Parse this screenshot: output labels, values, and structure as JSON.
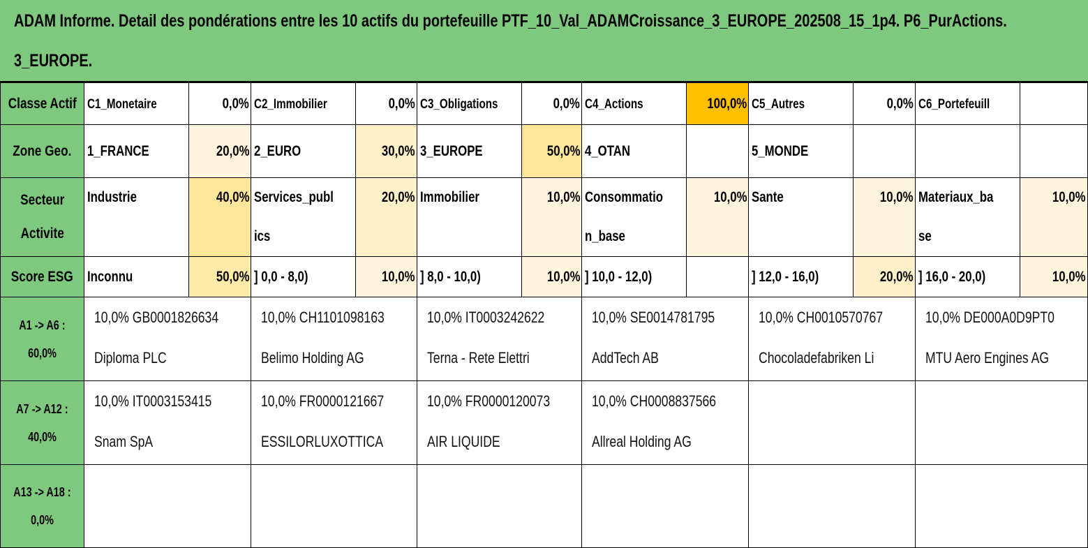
{
  "title": {
    "line1": "ADAM Informe. Detail des pondérations entre les 10 actifs du portefeuille PTF_10_Val_ADAMCroissance_3_EUROPE_202508_15_1p4. P6_PurActions.",
    "line2": "3_EUROPE."
  },
  "rows": {
    "classe": {
      "header": "Classe Actif",
      "cells": [
        {
          "label": "C1_Monetaire",
          "value": "0,0%"
        },
        {
          "label": "C2_Immobilier",
          "value": "0,0%"
        },
        {
          "label": "C3_Obligations",
          "value": "0,0%"
        },
        {
          "label": "C4_Actions",
          "value": "100,0%"
        },
        {
          "label": "C5_Autres",
          "value": "0,0%"
        },
        {
          "label": "C6_Portefeuill",
          "value": ""
        }
      ]
    },
    "zone": {
      "header": "Zone Geo.",
      "cells": [
        {
          "label": "1_FRANCE",
          "value": "20,0%"
        },
        {
          "label": "2_EURO",
          "value": "30,0%"
        },
        {
          "label": "3_EUROPE",
          "value": "50,0%"
        },
        {
          "label": "4_OTAN",
          "value": ""
        },
        {
          "label": "5_MONDE",
          "value": ""
        },
        {
          "label": "",
          "value": ""
        }
      ]
    },
    "secteur": {
      "header": "Secteur Activite",
      "cells": [
        {
          "label": "Industrie",
          "value": "40,0%"
        },
        {
          "label": "Services_publics",
          "value": "20,0%"
        },
        {
          "label": "Immobilier",
          "value": "10,0%"
        },
        {
          "label": "Consommation_base",
          "value": "10,0%"
        },
        {
          "label": "Sante",
          "value": "10,0%"
        },
        {
          "label": "Materiaux_base",
          "value": "10,0%"
        }
      ]
    },
    "esg": {
      "header": "Score ESG",
      "cells": [
        {
          "label": "Inconnu",
          "value": "50,0%"
        },
        {
          "label": "] 0,0 - 8,0)",
          "value": "10,0%"
        },
        {
          "label": "] 8,0 - 10,0)",
          "value": "10,0%"
        },
        {
          "label": "] 10,0 - 12,0)",
          "value": ""
        },
        {
          "label": "] 12,0 - 16,0)",
          "value": "20,0%"
        },
        {
          "label": "] 16,0 - 20,0)",
          "value": "10,0%"
        }
      ]
    }
  },
  "assets": [
    {
      "header_range": "A1 -> A6 :",
      "header_total": "60,0%",
      "items": [
        {
          "line1": "10,0% GB0001826634",
          "line2": "Diploma PLC"
        },
        {
          "line1": "10,0% CH1101098163",
          "line2": "Belimo Holding AG"
        },
        {
          "line1": "10,0% IT0003242622",
          "line2": "Terna - Rete Elettri"
        },
        {
          "line1": "10,0% SE0014781795",
          "line2": "AddTech AB"
        },
        {
          "line1": "10,0% CH0010570767",
          "line2": "Chocoladefabriken Li"
        },
        {
          "line1": "10,0% DE000A0D9PT0",
          "line2": "MTU Aero Engines AG"
        }
      ]
    },
    {
      "header_range": "A7 -> A12 :",
      "header_total": "40,0%",
      "items": [
        {
          "line1": "10,0% IT0003153415",
          "line2": "Snam SpA"
        },
        {
          "line1": "10,0% FR0000121667",
          "line2": "ESSILORLUXOTTICA"
        },
        {
          "line1": "10,0% FR0000120073",
          "line2": "AIR LIQUIDE"
        },
        {
          "line1": "10,0% CH0008837566",
          "line2": "Allreal Holding AG"
        },
        {
          "line1": "",
          "line2": ""
        },
        {
          "line1": "",
          "line2": ""
        }
      ]
    },
    {
      "header_range": "A13 -> A18 :",
      "header_total": "0,0%",
      "items": [
        {
          "line1": "",
          "line2": ""
        },
        {
          "line1": "",
          "line2": ""
        },
        {
          "line1": "",
          "line2": ""
        },
        {
          "line1": "",
          "line2": ""
        },
        {
          "line1": "",
          "line2": ""
        },
        {
          "line1": "",
          "line2": ""
        }
      ]
    }
  ],
  "colors": {
    "header_green": "#7fc97f",
    "highlight_orange": "#ffc000",
    "shade_strong": "#ffe699",
    "shade_medium": "#ffeaa8",
    "shade_light": "#fff0c8",
    "shade_faint": "#fff5dc"
  }
}
